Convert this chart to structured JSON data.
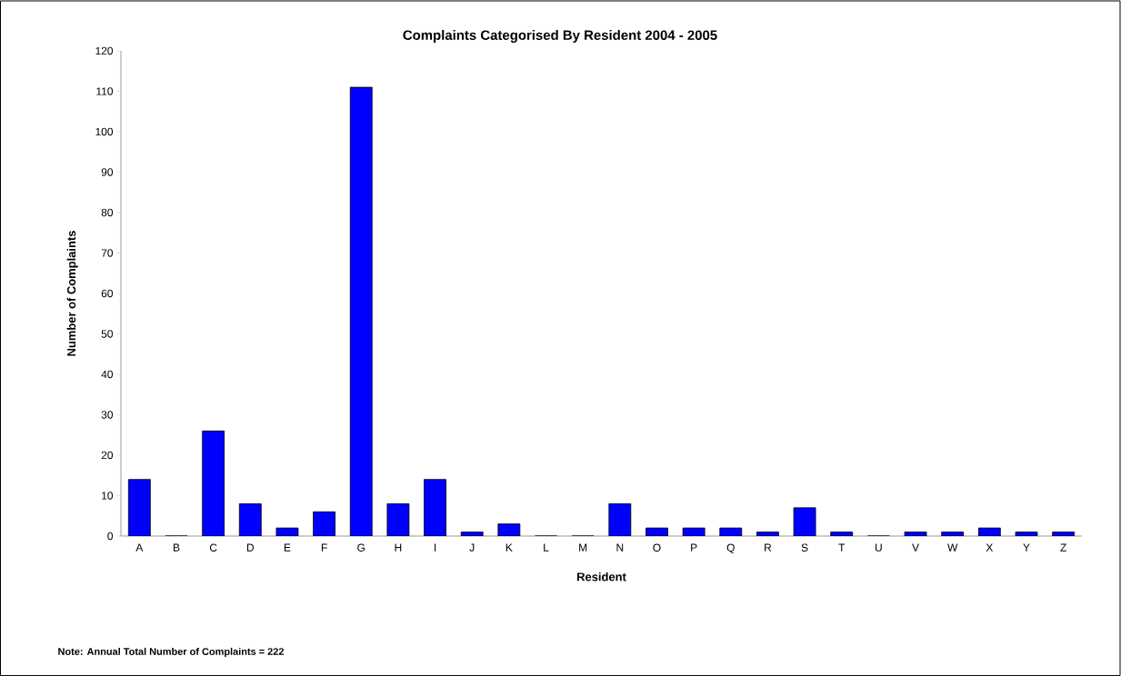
{
  "chart_data": {
    "type": "bar",
    "title": "Complaints Categorised By Resident 2004 - 2005",
    "xlabel": "Resident",
    "ylabel": "Number of Complaints",
    "categories": [
      "A",
      "B",
      "C",
      "D",
      "E",
      "F",
      "G",
      "H",
      "I",
      "J",
      "K",
      "L",
      "M",
      "N",
      "O",
      "P",
      "Q",
      "R",
      "S",
      "T",
      "U",
      "V",
      "W",
      "X",
      "Y",
      "Z"
    ],
    "values": [
      14,
      0,
      26,
      8,
      2,
      6,
      111,
      8,
      14,
      1,
      3,
      0,
      0,
      8,
      2,
      2,
      2,
      1,
      7,
      1,
      0,
      1,
      1,
      2,
      1,
      1
    ],
    "color": "#0000ff",
    "ylim": [
      0,
      120
    ],
    "yticks": [
      0,
      10,
      20,
      30,
      40,
      50,
      60,
      70,
      80,
      90,
      100,
      110,
      120
    ],
    "grid": false,
    "annotations": [
      "Note: Annual Total Number of Complaints = 222"
    ]
  }
}
